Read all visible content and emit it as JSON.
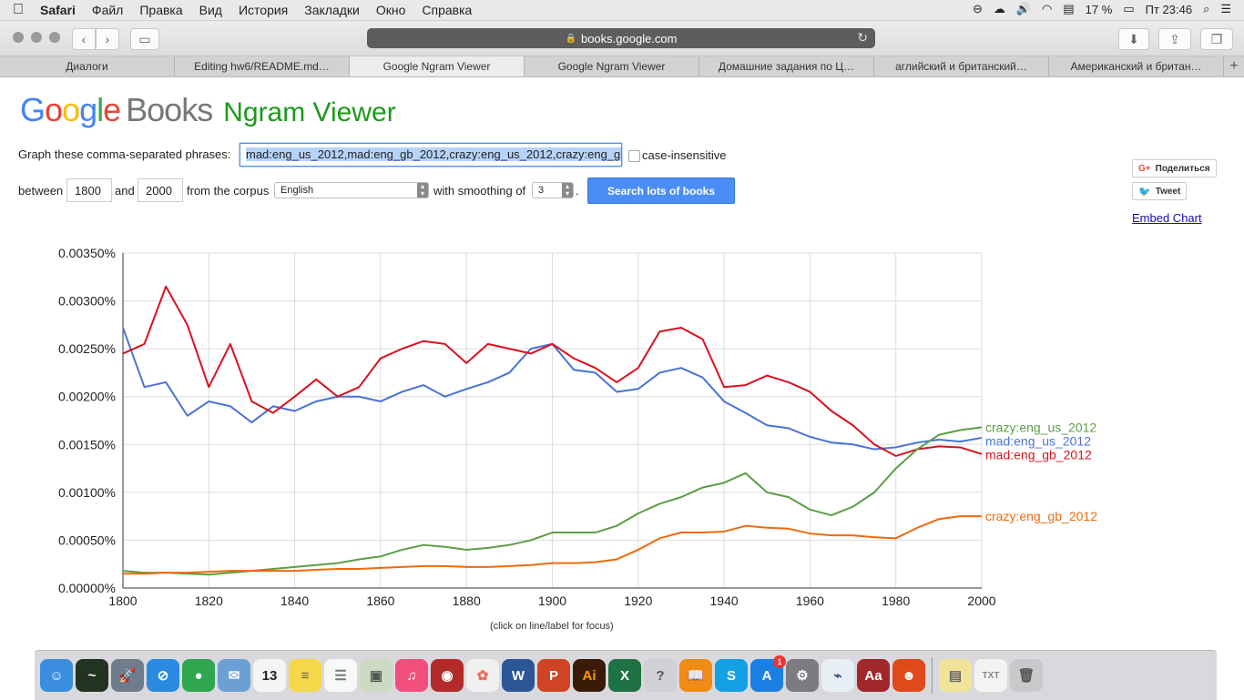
{
  "menubar": {
    "app": "Safari",
    "items": [
      "Файл",
      "Правка",
      "Вид",
      "История",
      "Закладки",
      "Окно",
      "Справка"
    ],
    "battery": "17 %",
    "clock": "Пт 23:46"
  },
  "browser": {
    "url": "books.google.com",
    "tabs": [
      "Диалоги",
      "Editing hw6/README.md…",
      "Google Ngram Viewer",
      "Google Ngram Viewer",
      "Домашние задания по Ц…",
      "аглийский и британский…",
      "Американский и британ…"
    ],
    "active_tab": 2
  },
  "header": {
    "books": "Books",
    "ngram": "Ngram Viewer"
  },
  "form": {
    "phrases_label": "Graph these comma-separated phrases:",
    "phrases_value": "mad:eng_us_2012,mad:eng_gb_2012,crazy:eng_us_2012,crazy:eng_gb_2012",
    "case_insensitive": "case-insensitive",
    "between": "between",
    "year_start": "1800",
    "and": "and",
    "year_end": "2000",
    "from_corpus": "from the corpus",
    "corpus": "English",
    "with_smoothing": "with smoothing of",
    "smoothing": "3",
    "period": ".",
    "search_button": "Search lots of books"
  },
  "social": {
    "share": "Поделиться",
    "tweet": "Tweet",
    "embed": "Embed Chart"
  },
  "chart_note": "(click on line/label for focus)",
  "chart_data": {
    "type": "line",
    "x": [
      1800,
      1805,
      1810,
      1815,
      1820,
      1825,
      1830,
      1835,
      1840,
      1845,
      1850,
      1855,
      1860,
      1865,
      1870,
      1875,
      1880,
      1885,
      1890,
      1895,
      1900,
      1905,
      1910,
      1915,
      1920,
      1925,
      1930,
      1935,
      1940,
      1945,
      1950,
      1955,
      1960,
      1965,
      1970,
      1975,
      1980,
      1985,
      1990,
      1995,
      2000
    ],
    "ylim": [
      0,
      0.0035
    ],
    "yticks": [
      "0.00350%",
      "0.00300%",
      "0.00250%",
      "0.00200%",
      "0.00150%",
      "0.00100%",
      "0.00050%",
      "0.00000%"
    ],
    "xticks": [
      "1800",
      "1820",
      "1840",
      "1860",
      "1880",
      "1900",
      "1920",
      "1940",
      "1960",
      "1980",
      "2000"
    ],
    "series": [
      {
        "name": "mad:eng_us_2012",
        "color": "#4a72d8",
        "values": [
          0.00272,
          0.0021,
          0.00215,
          0.0018,
          0.00195,
          0.0019,
          0.00173,
          0.0019,
          0.00185,
          0.00195,
          0.002,
          0.002,
          0.00195,
          0.00205,
          0.00212,
          0.002,
          0.00208,
          0.00215,
          0.00225,
          0.0025,
          0.00255,
          0.00228,
          0.00225,
          0.00205,
          0.00208,
          0.00225,
          0.0023,
          0.0022,
          0.00195,
          0.00183,
          0.0017,
          0.00167,
          0.00158,
          0.00152,
          0.0015,
          0.00145,
          0.00147,
          0.00152,
          0.00155,
          0.00153,
          0.00157
        ]
      },
      {
        "name": "mad:eng_gb_2012",
        "color": "#d9111e",
        "values": [
          0.00245,
          0.00255,
          0.00315,
          0.00275,
          0.0021,
          0.00255,
          0.00195,
          0.00183,
          0.002,
          0.00218,
          0.002,
          0.0021,
          0.0024,
          0.0025,
          0.00258,
          0.00255,
          0.00235,
          0.00255,
          0.0025,
          0.00245,
          0.00255,
          0.0024,
          0.0023,
          0.00215,
          0.0023,
          0.00268,
          0.00272,
          0.0026,
          0.0021,
          0.00212,
          0.00222,
          0.00215,
          0.00205,
          0.00185,
          0.0017,
          0.0015,
          0.00138,
          0.00145,
          0.00148,
          0.00147,
          0.0014
        ]
      },
      {
        "name": "crazy:eng_us_2012",
        "color": "#5b9e45",
        "values": [
          0.00018,
          0.00016,
          0.00016,
          0.00015,
          0.00014,
          0.00016,
          0.00018,
          0.0002,
          0.00022,
          0.00024,
          0.00026,
          0.0003,
          0.00033,
          0.0004,
          0.00045,
          0.00043,
          0.0004,
          0.00042,
          0.00045,
          0.0005,
          0.00058,
          0.00058,
          0.00058,
          0.00065,
          0.00078,
          0.00088,
          0.00095,
          0.00105,
          0.0011,
          0.0012,
          0.001,
          0.00095,
          0.00082,
          0.00076,
          0.00085,
          0.001,
          0.00125,
          0.00145,
          0.0016,
          0.00165,
          0.00168
        ]
      },
      {
        "name": "crazy:eng_gb_2012",
        "color": "#ee6a0e",
        "values": [
          0.00015,
          0.00015,
          0.00016,
          0.00016,
          0.00017,
          0.00018,
          0.00018,
          0.00018,
          0.00018,
          0.00019,
          0.0002,
          0.0002,
          0.00021,
          0.00022,
          0.00023,
          0.00023,
          0.00022,
          0.00022,
          0.00023,
          0.00024,
          0.00026,
          0.00026,
          0.00027,
          0.0003,
          0.0004,
          0.00052,
          0.00058,
          0.00058,
          0.00059,
          0.00065,
          0.00063,
          0.00062,
          0.00057,
          0.00055,
          0.00055,
          0.00053,
          0.00052,
          0.00063,
          0.00072,
          0.00075,
          0.00075
        ]
      }
    ]
  },
  "dock": [
    {
      "name": "finder-icon",
      "color": "#3b8de0",
      "glyph": "☺"
    },
    {
      "name": "activity-monitor-icon",
      "color": "#223322",
      "glyph": "~"
    },
    {
      "name": "launchpad-icon",
      "color": "#6d7d8c",
      "glyph": "🚀"
    },
    {
      "name": "safari-icon",
      "color": "#2a8ae0",
      "glyph": "⊘"
    },
    {
      "name": "chrome-icon",
      "color": "#2fa64f",
      "glyph": "●"
    },
    {
      "name": "mail-icon",
      "color": "#6c9fd4",
      "glyph": "✉"
    },
    {
      "name": "calendar-icon",
      "color": "#f4f4f4",
      "glyph": "13",
      "text": "#222"
    },
    {
      "name": "notes-icon",
      "color": "#f5d84a",
      "glyph": "≡",
      "text": "#665"
    },
    {
      "name": "reminders-icon",
      "color": "#f8f8f8",
      "glyph": "☰",
      "text": "#777"
    },
    {
      "name": "preview-icon",
      "color": "#cdd9c2",
      "glyph": "▣",
      "text": "#555"
    },
    {
      "name": "itunes-icon",
      "color": "#f24e7c",
      "glyph": "♫"
    },
    {
      "name": "photo-booth-icon",
      "color": "#b22a2a",
      "glyph": "◉"
    },
    {
      "name": "photos-icon",
      "color": "#f0f0f0",
      "glyph": "✿",
      "text": "#e65"
    },
    {
      "name": "word-icon",
      "color": "#2b5797",
      "glyph": "W"
    },
    {
      "name": "powerpoint-icon",
      "color": "#d04423",
      "glyph": "P"
    },
    {
      "name": "illustrator-icon",
      "color": "#3a1b08",
      "glyph": "Ai",
      "text": "#ff9a00"
    },
    {
      "name": "excel-icon",
      "color": "#1f7244",
      "glyph": "X"
    },
    {
      "name": "help-icon",
      "color": "#d0d0d5",
      "glyph": "?",
      "text": "#555"
    },
    {
      "name": "ibooks-icon",
      "color": "#f28a16",
      "glyph": "📖"
    },
    {
      "name": "skype-icon",
      "color": "#13a0e5",
      "glyph": "S"
    },
    {
      "name": "app-store-icon",
      "color": "#1b7fe3",
      "glyph": "A",
      "badge": "1"
    },
    {
      "name": "system-preferences-icon",
      "color": "#7b7b80",
      "glyph": "⚙"
    },
    {
      "name": "xcode-icon",
      "color": "#e8eef5",
      "glyph": "⌁",
      "text": "#357"
    },
    {
      "name": "dictionary-icon",
      "color": "#a0282d",
      "glyph": "Aa"
    },
    {
      "name": "hotspot-shield-icon",
      "color": "#e04a1a",
      "glyph": "☻"
    }
  ],
  "dock_right": [
    {
      "name": "documents-stack-icon",
      "color": "#f1e49a",
      "glyph": "▤",
      "text": "#666"
    },
    {
      "name": "txt-file-icon",
      "color": "#f3f3f3",
      "glyph": "TXT",
      "text": "#888"
    },
    {
      "name": "trash-icon",
      "color": "#c9c9cc",
      "glyph": "🗑",
      "text": "#555"
    }
  ]
}
